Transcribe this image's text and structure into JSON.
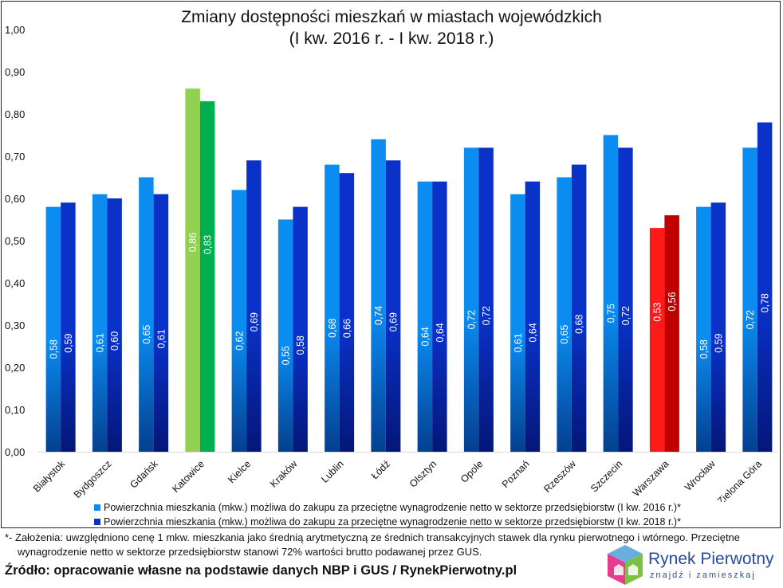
{
  "chart_data": {
    "type": "bar",
    "title_line1": "Zmiany dostępności mieszkań w miastach wojewódzkich",
    "title_line2": "(I kw. 2016 r. - I kw. 2018 r.)",
    "xlabel": "",
    "ylabel": "",
    "ylim": [
      0,
      1.0
    ],
    "yticks": [
      "0,00",
      "0,10",
      "0,20",
      "0,30",
      "0,40",
      "0,50",
      "0,60",
      "0,70",
      "0,80",
      "0,90",
      "1,00"
    ],
    "grid": false,
    "legend_position": "bottom",
    "categories": [
      "Białystok",
      "Bydgoszcz",
      "Gdańsk",
      "Katowice",
      "Kielce",
      "Kraków",
      "Lublin",
      "Łódź",
      "Olsztyn",
      "Opole",
      "Poznań",
      "Rzeszów",
      "Szczecin",
      "Warszawa",
      "Wrocław",
      "Zielona Góra"
    ],
    "series": [
      {
        "name": "Powierzchnia mieszkania (mkw.) możliwa do zakupu za przeciętne wynagrodzenie netto w sektorze przedsiębiorstw (I kw. 2016 r.)*",
        "values": [
          0.58,
          0.61,
          0.65,
          0.86,
          0.62,
          0.55,
          0.68,
          0.74,
          0.64,
          0.72,
          0.61,
          0.65,
          0.75,
          0.53,
          0.58,
          0.72
        ],
        "labels": [
          "0,58",
          "0,61",
          "0,65",
          "0,86",
          "0,62",
          "0,55",
          "0,68",
          "0,74",
          "0,64",
          "0,72",
          "0,61",
          "0,65",
          "0,75",
          "0,53",
          "0,58",
          "0,72"
        ],
        "color": "#0a8cf0"
      },
      {
        "name": "Powierzchnia mieszkania (mkw.) możliwa do zakupu za przeciętne wynagrodzenie netto w sektorze przedsiębiorstw (I kw. 2018 r.)*",
        "values": [
          0.59,
          0.6,
          0.61,
          0.83,
          0.69,
          0.58,
          0.66,
          0.69,
          0.64,
          0.72,
          0.64,
          0.68,
          0.72,
          0.56,
          0.59,
          0.78
        ],
        "labels": [
          "0,59",
          "0,60",
          "0,61",
          "0,83",
          "0,69",
          "0,58",
          "0,66",
          "0,69",
          "0,64",
          "0,72",
          "0,64",
          "0,68",
          "0,72",
          "0,56",
          "0,59",
          "0,78"
        ],
        "color": "#0a32c8"
      }
    ],
    "highlights": {
      "Katowice": [
        "#92d050",
        "#00b050"
      ],
      "Warszawa": [
        "#ff1a1a",
        "#c00000"
      ]
    }
  },
  "footnote_line1": "*- Założenia: uwzględniono cenę 1 mkw. mieszkania jako średnią arytmetyczną ze średnich transakcyjnych stawek dla rynku pierwotnego i wtórnego. Przeciętne",
  "footnote_line2": "wynagrodzenie netto w sektorze przedsiębiorstw stanowi 72% wartości brutto podawanej przez GUS.",
  "source": "Źródło: opracowanie własne na podstawie danych NBP i GUS / RynekPierwotny.pl",
  "logo": {
    "name": "Rynek Pierwotny",
    "tagline": "znajdź i zamieszkaj"
  }
}
